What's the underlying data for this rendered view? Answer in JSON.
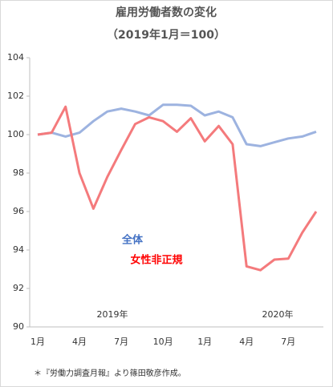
{
  "chart_data": {
    "type": "line",
    "title": "雇用労働者数の変化",
    "subtitle": "（2019年1月＝100）",
    "categories": [
      "1月",
      null,
      null,
      "4月",
      null,
      null,
      "7月",
      null,
      null,
      "10月",
      null,
      null,
      "1月",
      null,
      null,
      "4月",
      null,
      null,
      "7月",
      null,
      null
    ],
    "series": [
      {
        "name": "全体",
        "color": "#9db3e0",
        "label_color": "#4472c4",
        "values": [
          100.0,
          100.1,
          99.9,
          100.1,
          100.7,
          101.2,
          101.35,
          101.2,
          101.0,
          101.55,
          101.55,
          101.5,
          101.0,
          101.2,
          100.9,
          99.5,
          99.4,
          99.6,
          99.8,
          99.9,
          100.15
        ]
      },
      {
        "name": "女性非正規",
        "color": "#f47a7c",
        "label_color": "#ff0000",
        "values": [
          100.0,
          100.1,
          101.45,
          98.0,
          96.15,
          97.8,
          99.2,
          100.55,
          100.9,
          100.7,
          100.15,
          100.85,
          99.65,
          100.45,
          99.5,
          93.15,
          92.95,
          93.5,
          93.55,
          94.9,
          96.0
        ]
      }
    ],
    "ylim": [
      90,
      104
    ],
    "yticks": [
      90,
      92,
      94,
      96,
      98,
      100,
      102,
      104
    ],
    "annotations": [
      "2019年",
      "2020年"
    ],
    "note": "＊『労働力調査月報』より篠田敬彦作成。"
  }
}
